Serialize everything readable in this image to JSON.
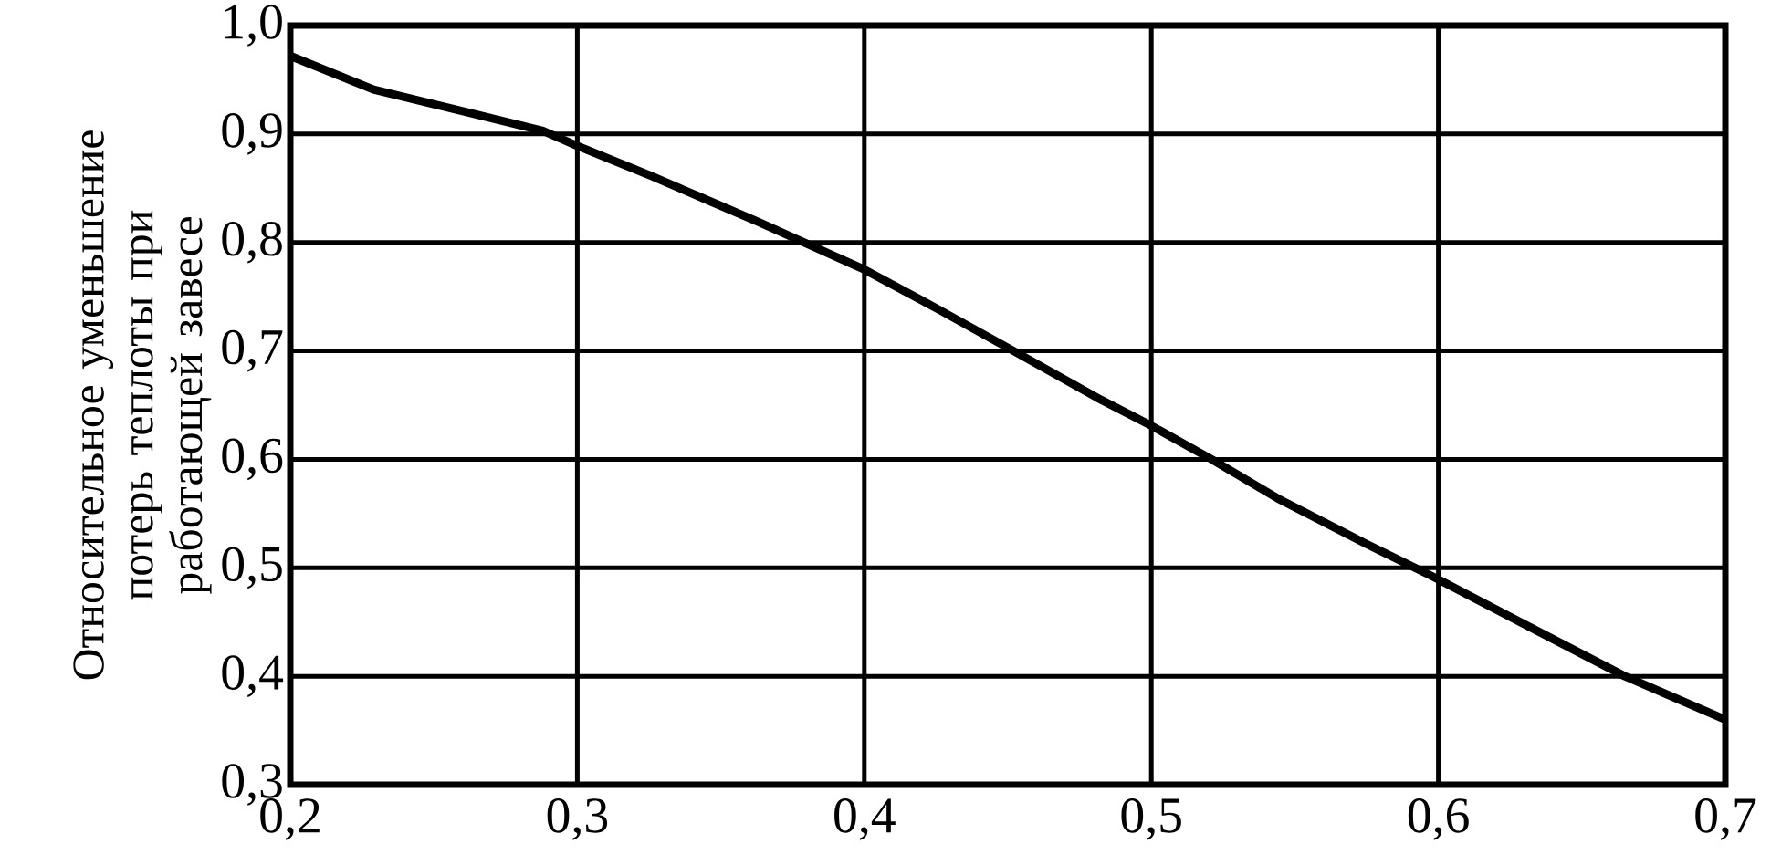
{
  "chart_data": {
    "type": "line",
    "ylabel": "Относительное уменьшение потерь теплоты при работающей завесе",
    "xlim": [
      0.2,
      0.7
    ],
    "ylim": [
      0.3,
      1.0
    ],
    "xticks": [
      {
        "value": 0.2,
        "label": "0,2"
      },
      {
        "value": 0.3,
        "label": "0,3"
      },
      {
        "value": 0.4,
        "label": "0,4"
      },
      {
        "value": 0.5,
        "label": "0,5"
      },
      {
        "value": 0.6,
        "label": "0,6"
      },
      {
        "value": 0.7,
        "label": "0,7"
      }
    ],
    "yticks": [
      {
        "value": 0.3,
        "label": "0,3"
      },
      {
        "value": 0.4,
        "label": "0,4"
      },
      {
        "value": 0.5,
        "label": "0,5"
      },
      {
        "value": 0.6,
        "label": "0,6"
      },
      {
        "value": 0.7,
        "label": "0,7"
      },
      {
        "value": 0.8,
        "label": "0,8"
      },
      {
        "value": 0.9,
        "label": "0,9"
      },
      {
        "value": 1.0,
        "label": "1,0"
      }
    ],
    "grid": true,
    "marker": "none",
    "line_style": "solid",
    "series": [
      {
        "color": "#000000",
        "x": [
          0.2,
          0.229,
          0.288,
          0.3,
          0.326,
          0.363,
          0.4,
          0.426,
          0.452,
          0.481,
          0.5,
          0.521,
          0.544,
          0.575,
          0.598,
          0.627,
          0.665,
          0.7
        ],
        "values": [
          0.972,
          0.941,
          0.903,
          0.889,
          0.861,
          0.819,
          0.775,
          0.738,
          0.7,
          0.657,
          0.631,
          0.6,
          0.564,
          0.522,
          0.492,
          0.452,
          0.4,
          0.36
        ]
      }
    ]
  }
}
